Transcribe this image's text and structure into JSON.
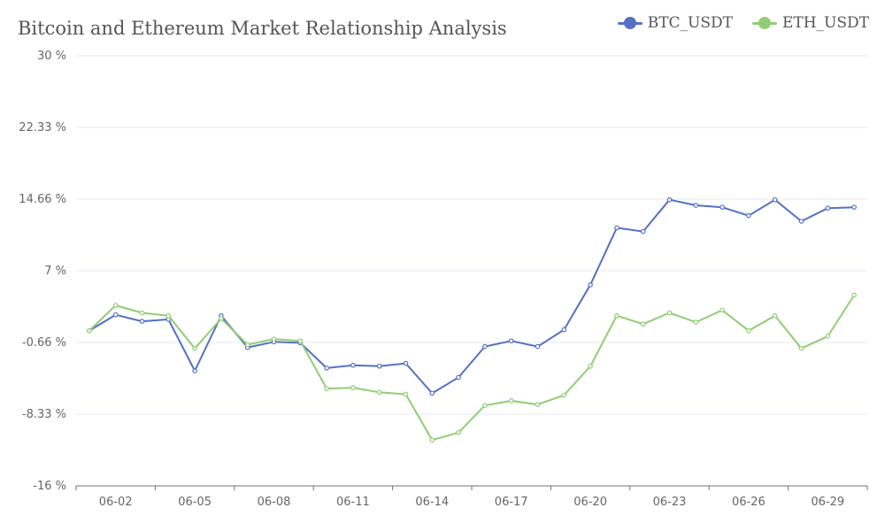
{
  "chart_data": {
    "type": "line",
    "title": "Bitcoin and Ethereum Market Relationship Analysis",
    "xlabel": "",
    "ylabel": "",
    "y_ticks": [
      "30 %",
      "22.33 %",
      "14.66 %",
      "7 %",
      "-0.66 %",
      "-8.33 %",
      "-16 %"
    ],
    "ylim": [
      -16,
      30
    ],
    "grid": true,
    "legend_position": "top-right",
    "x": [
      "06-01",
      "06-02",
      "06-03",
      "06-04",
      "06-05",
      "06-06",
      "06-07",
      "06-08",
      "06-09",
      "06-10",
      "06-11",
      "06-12",
      "06-13",
      "06-14",
      "06-15",
      "06-16",
      "06-17",
      "06-18",
      "06-19",
      "06-20",
      "06-21",
      "06-22",
      "06-23",
      "06-24",
      "06-25",
      "06-26",
      "06-27",
      "06-28",
      "06-29",
      "06-30"
    ],
    "x_tick_labels": [
      "06-02",
      "06-05",
      "06-08",
      "06-11",
      "06-14",
      "06-17",
      "06-20",
      "06-23",
      "06-26",
      "06-29"
    ],
    "series": [
      {
        "name": "BTC_USDT",
        "color": "#5470c6",
        "values": [
          0.6,
          2.3,
          1.6,
          1.8,
          -3.7,
          2.2,
          -1.2,
          -0.6,
          -0.7,
          -3.4,
          -3.1,
          -3.2,
          -2.9,
          -6.1,
          -4.4,
          -1.1,
          -0.5,
          -1.1,
          0.7,
          5.5,
          11.6,
          11.2,
          14.6,
          14.0,
          13.8,
          12.9,
          14.6,
          12.3,
          13.7,
          13.8
        ]
      },
      {
        "name": "ETH_USDT",
        "color": "#91cc75",
        "values": [
          0.6,
          3.3,
          2.5,
          2.2,
          -1.3,
          1.9,
          -0.9,
          -0.3,
          -0.5,
          -5.6,
          -5.5,
          -6.0,
          -6.2,
          -11.1,
          -10.3,
          -7.4,
          -6.9,
          -7.3,
          -6.3,
          -3.2,
          2.2,
          1.3,
          2.5,
          1.5,
          2.8,
          0.6,
          2.2,
          -1.3,
          0.0,
          4.4
        ]
      }
    ]
  }
}
